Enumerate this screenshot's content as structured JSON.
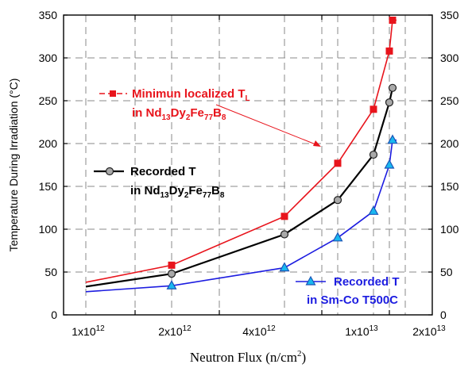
{
  "chart_data": {
    "type": "line",
    "xlabel": {
      "text": "Neutron Flux (n/cm",
      "sup": "2",
      "tail": ")"
    },
    "ylabel": "Temperature During Irradiation (°C)",
    "x_scale": "log",
    "xlim": [
      8200000000000.0,
      26000000000000.0
    ],
    "ylim": [
      0,
      350
    ],
    "y_ticks": [
      0,
      50,
      100,
      150,
      200,
      250,
      300,
      350
    ],
    "x_ticks": [
      {
        "value": 1000000000000.0,
        "base": "1x10",
        "exp": "12"
      },
      {
        "value": 2000000000000.0,
        "base": "2x10",
        "exp": "12"
      },
      {
        "value": 4000000000000.0,
        "base": "4x10",
        "exp": "12"
      },
      {
        "value": 10000000000000.0,
        "base": "1x10",
        "exp": "13"
      },
      {
        "value": 20000000000000.0,
        "base": "2x10",
        "exp": "13"
      }
    ],
    "right_y_axis": true,
    "grid": "dashed vertical lines at x ticks, dashed horizontal lines at y ticks",
    "series": [
      {
        "name_parts": [
          [
            "Minimun localized T",
            ""
          ],
          [
            "L",
            "sub"
          ]
        ],
        "name_line2": [
          [
            "in Nd",
            ""
          ],
          [
            "13",
            "sub"
          ],
          [
            "Dy",
            ""
          ],
          [
            "2",
            "sub"
          ],
          [
            "Fe",
            ""
          ],
          [
            "77",
            "sub"
          ],
          [
            "B",
            ""
          ],
          [
            "8",
            "sub"
          ]
        ],
        "color": "#e8141c",
        "marker": "square",
        "x": [
          8200000000000.0,
          8800000000000.0,
          9500000000000.0,
          12000000000000.0,
          14000000000000.0,
          19000000000000.0,
          19500000000000.0,
          20000000000000.0
        ],
        "y": [
          38,
          58,
          115,
          177,
          240,
          308,
          344,
          344
        ],
        "markers": [
          false,
          true,
          true,
          true,
          true,
          true,
          true,
          false
        ]
      },
      {
        "name_parts": [
          [
            "Recorded T",
            ""
          ]
        ],
        "name_line2": [
          [
            "in Nd",
            ""
          ],
          [
            "13",
            "sub"
          ],
          [
            "Dy",
            ""
          ],
          [
            "2",
            "sub"
          ],
          [
            "Fe",
            ""
          ],
          [
            "77",
            "sub"
          ],
          [
            "B",
            ""
          ],
          [
            "8",
            "sub"
          ]
        ],
        "color": "#000000",
        "marker": "circle",
        "x": [
          8200000000000.0,
          8800000000000.0,
          9500000000000.0,
          12000000000000.0,
          14000000000000.0,
          19000000000000.0,
          19500000000000.0,
          20000000000000.0
        ],
        "y": [
          33,
          48,
          94,
          134,
          187,
          248,
          265,
          265
        ],
        "markers": [
          false,
          true,
          true,
          true,
          true,
          true,
          true,
          false
        ]
      },
      {
        "name_parts": [
          [
            "Recorded T",
            ""
          ]
        ],
        "name_line2": [
          [
            "in Sm-Co T500C",
            ""
          ]
        ],
        "color": "#1c1ce0",
        "marker": "triangle",
        "x": [
          8200000000000.0,
          8800000000000.0,
          9500000000000.0,
          12000000000000.0,
          14000000000000.0,
          19000000000000.0,
          19500000000000.0,
          20000000000000.0
        ],
        "y": [
          27,
          34,
          55,
          90,
          121,
          175,
          204,
          204
        ],
        "markers": [
          false,
          true,
          true,
          true,
          true,
          true,
          true,
          false
        ]
      }
    ]
  }
}
